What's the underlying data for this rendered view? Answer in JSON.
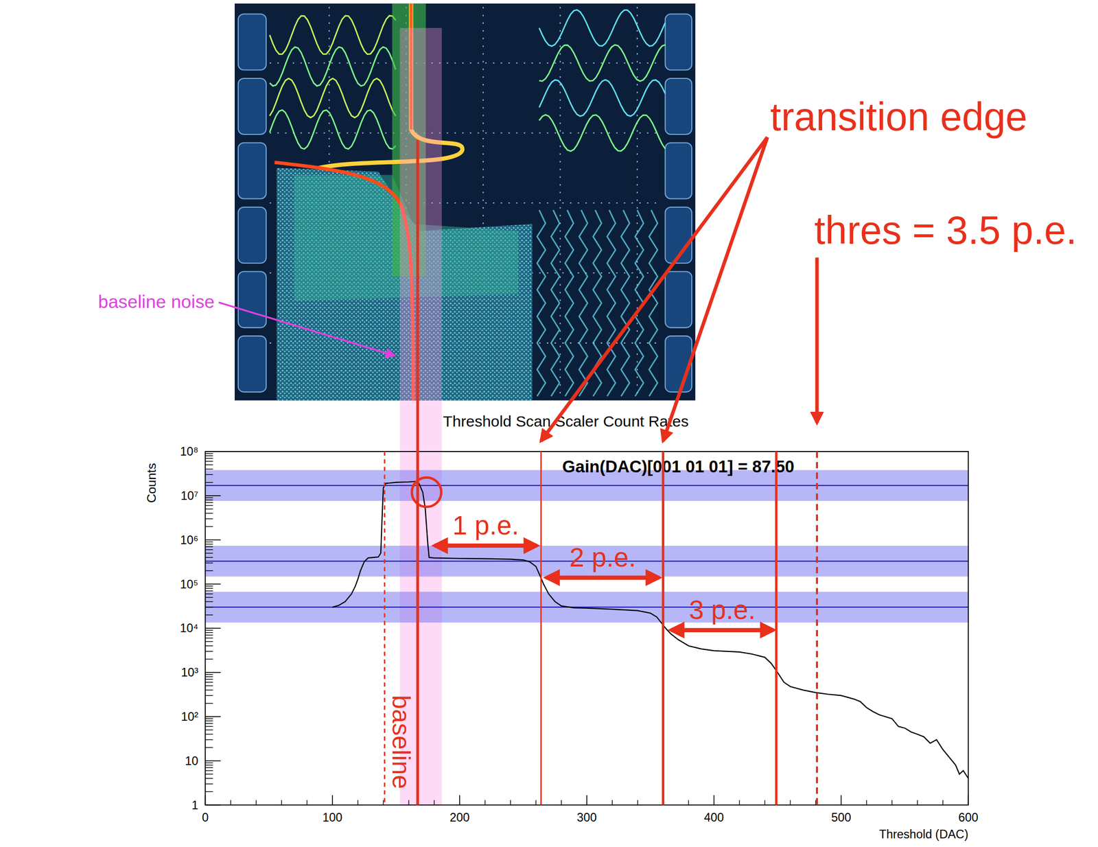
{
  "chart_data": {
    "type": "line",
    "title": "Threshold Scan Scaler Count Rates",
    "x_label": "Threshold (DAC)",
    "y_label": "Counts",
    "log": "y",
    "xlim": [
      0,
      600
    ],
    "ylim": [
      1,
      100000000
    ],
    "xticks": [
      0,
      100,
      200,
      300,
      400,
      500,
      600
    ],
    "yticks": [
      1,
      10,
      {
        "value": 100,
        "label": "10²"
      },
      {
        "value": 1000,
        "label": "10³"
      },
      {
        "value": 10000,
        "label": "10⁴"
      },
      {
        "value": 100000,
        "label": "10⁵"
      },
      {
        "value": 1000000,
        "label": "10⁶"
      },
      {
        "value": 10000000,
        "label": "10⁷"
      },
      {
        "value": 100000000,
        "label": "10⁸"
      }
    ],
    "series": [
      {
        "color": "#000000",
        "x": [
          100,
          105,
          110,
          115,
          118,
          120,
          122,
          125,
          128,
          132,
          136,
          138,
          139,
          140,
          142,
          150,
          160,
          165,
          168,
          171,
          173,
          175,
          176,
          180,
          200,
          220,
          240,
          250,
          255,
          260,
          263,
          266,
          270,
          275,
          280,
          290,
          300,
          320,
          340,
          350,
          355,
          358,
          362,
          366,
          372,
          380,
          390,
          400,
          420,
          430,
          440,
          445,
          450,
          455,
          460,
          470,
          480,
          490,
          500,
          510,
          515,
          520,
          525,
          530,
          540,
          545,
          550,
          555,
          560,
          565,
          570,
          575,
          580,
          585,
          590,
          593,
          596,
          600
        ],
        "values": [
          30000,
          33000,
          40000,
          60000,
          90000,
          130000,
          200000,
          320000,
          390000,
          400000,
          410000,
          500000,
          3000000,
          15000000,
          19000000,
          20000000,
          20500000,
          21000000,
          19000000,
          12000000,
          5000000,
          800000,
          400000,
          390000,
          380000,
          375000,
          365000,
          350000,
          320000,
          250000,
          160000,
          100000,
          60000,
          40000,
          32000,
          29000,
          28500,
          27000,
          25000,
          22000,
          18000,
          14000,
          10000,
          7500,
          5500,
          4000,
          3400,
          3100,
          2900,
          2600,
          2200,
          1600,
          1000,
          600,
          480,
          400,
          350,
          320,
          300,
          250,
          220,
          160,
          130,
          110,
          90,
          60,
          55,
          45,
          40,
          35,
          25,
          30,
          18,
          12,
          8,
          5,
          6,
          4
        ]
      }
    ],
    "annotations": {
      "gain_label": "Gain(DAC)[001 01 01] = 87.50",
      "levels": [
        17000000,
        330000,
        30000
      ],
      "baseline": {
        "label": "baseline",
        "value": 167
      },
      "baseline_noise": {
        "label": "baseline noise",
        "range": [
          153,
          186
        ]
      },
      "dashed_lines": [
        141
      ],
      "edges": [
        264,
        360,
        449
      ],
      "transition_edge": {
        "label": "transition edge",
        "targets": [
          264,
          360
        ]
      },
      "threshold": {
        "label": "thres = 3.5 p.e.",
        "value": 481
      },
      "circle": {
        "x": 174,
        "y": 12000000
      },
      "pe_intervals": [
        {
          "label": "1 p.e.",
          "from": 178,
          "to": 263,
          "y": 740000
        },
        {
          "label": "2 p.e.",
          "from": 266,
          "to": 359,
          "y": 140000
        },
        {
          "label": "3 p.e.",
          "from": 364,
          "to": 449,
          "y": 9100
        }
      ]
    }
  }
}
